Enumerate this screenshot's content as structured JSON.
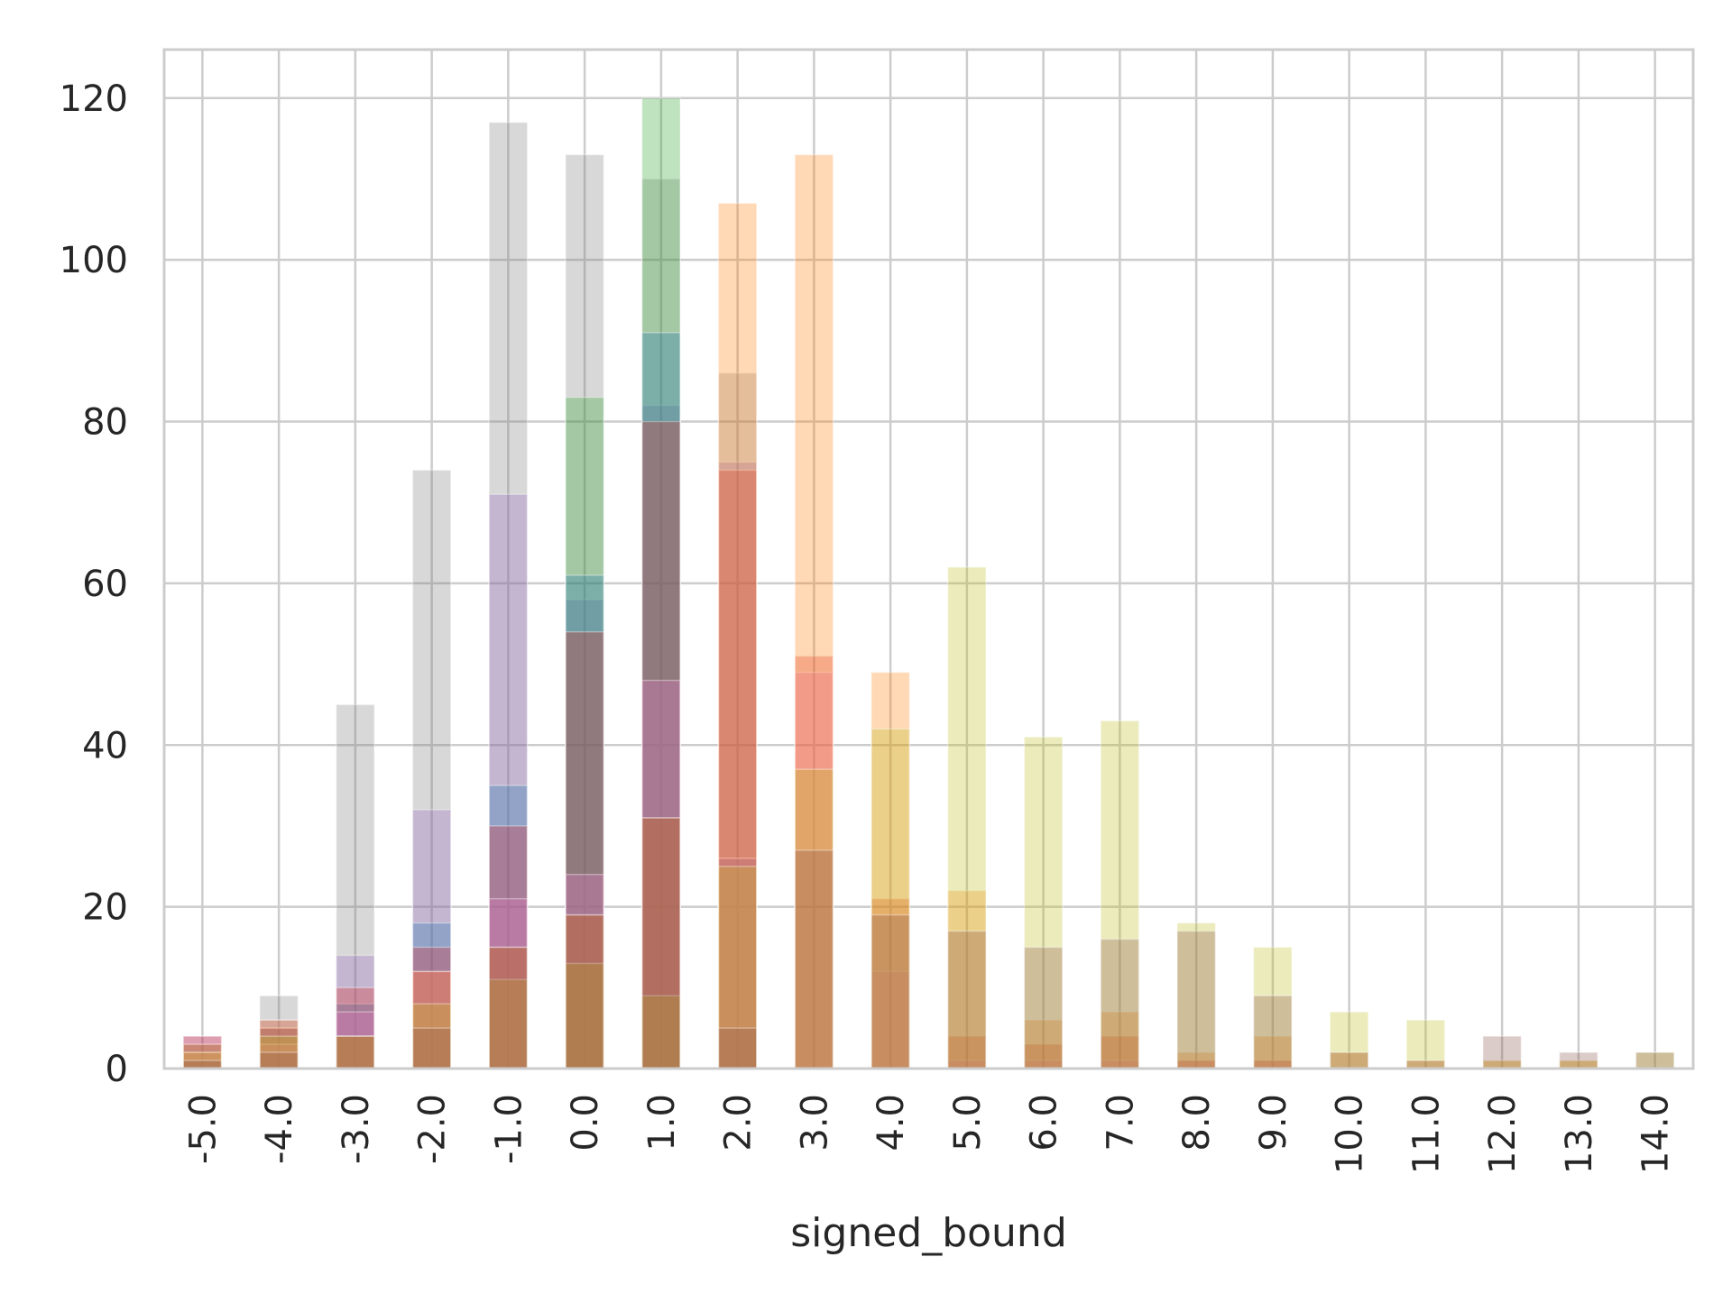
{
  "chart_data": {
    "type": "bar",
    "stacked": false,
    "overlaid": true,
    "title": "",
    "xlabel": "signed_bound",
    "ylabel": "",
    "ylim": [
      0,
      126
    ],
    "yticks": [
      0,
      20,
      40,
      60,
      80,
      100,
      120
    ],
    "grid": true,
    "categories": [
      "-5.0",
      "-4.0",
      "-3.0",
      "-2.0",
      "-1.0",
      "0.0",
      "1.0",
      "2.0",
      "3.0",
      "4.0",
      "5.0",
      "6.0",
      "7.0",
      "8.0",
      "9.0",
      "10.0",
      "11.0",
      "12.0",
      "13.0",
      "14.0"
    ],
    "series": [
      {
        "color": "#7f7f7f",
        "values": [
          1,
          9,
          45,
          74,
          117,
          113,
          110,
          86,
          0,
          0,
          0,
          0,
          0,
          0,
          0,
          0,
          0,
          0,
          0,
          0
        ]
      },
      {
        "color": "#9467bd",
        "values": [
          4,
          6,
          14,
          32,
          71,
          58,
          82,
          75,
          0,
          0,
          0,
          0,
          0,
          0,
          0,
          0,
          0,
          0,
          0,
          0
        ]
      },
      {
        "color": "#2ca02c",
        "values": [
          0,
          0,
          0,
          0,
          0,
          83,
          120,
          0,
          0,
          0,
          0,
          0,
          0,
          0,
          0,
          0,
          0,
          0,
          0,
          0
        ]
      },
      {
        "color": "#1f77b4",
        "values": [
          3,
          5,
          8,
          18,
          35,
          61,
          91,
          26,
          0,
          0,
          0,
          0,
          0,
          0,
          0,
          0,
          0,
          0,
          0,
          0
        ]
      },
      {
        "color": "#d62728",
        "values": [
          4,
          5,
          10,
          15,
          30,
          54,
          80,
          74,
          51,
          21,
          4,
          3,
          4,
          1,
          1,
          0,
          0,
          0,
          0,
          0
        ]
      },
      {
        "color": "#e377c2",
        "values": [
          2,
          3,
          7,
          12,
          21,
          24,
          48,
          26,
          49,
          12,
          1,
          1,
          1,
          1,
          1,
          0,
          0,
          0,
          0,
          0
        ]
      },
      {
        "color": "#ff7f0e",
        "values": [
          3,
          6,
          4,
          12,
          15,
          19,
          31,
          107,
          113,
          49,
          22,
          6,
          7,
          2,
          4,
          2,
          1,
          1,
          1,
          0
        ]
      },
      {
        "color": "#bcbd22",
        "values": [
          2,
          4,
          4,
          8,
          11,
          13,
          9,
          25,
          37,
          42,
          62,
          41,
          43,
          18,
          15,
          7,
          6,
          1,
          1,
          2
        ]
      },
      {
        "color": "#8c564b",
        "values": [
          1,
          2,
          4,
          5,
          15,
          19,
          31,
          5,
          27,
          19,
          17,
          15,
          16,
          17,
          9,
          2,
          1,
          4,
          2,
          2
        ]
      }
    ]
  }
}
